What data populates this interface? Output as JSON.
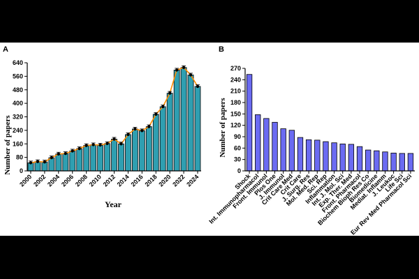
{
  "chart_data": [
    {
      "panel_label": "A",
      "type": "bar",
      "title": "",
      "xlabel": "Year",
      "ylabel": "Number of papers",
      "ylim": [
        0,
        640
      ],
      "yticks": [
        0,
        80,
        160,
        240,
        320,
        400,
        480,
        560,
        640
      ],
      "categories": [
        "2000",
        "2001",
        "2002",
        "2003",
        "2004",
        "2005",
        "2006",
        "2007",
        "2008",
        "2009",
        "2010",
        "2011",
        "2012",
        "2013",
        "2014",
        "2015",
        "2016",
        "2017",
        "2018",
        "2019",
        "2020",
        "2021",
        "2022",
        "2023",
        "2024"
      ],
      "xtick_labels": [
        "2000",
        "2002",
        "2004",
        "2006",
        "2008",
        "2010",
        "2012",
        "2014",
        "2016",
        "2018",
        "2020",
        "2022",
        "2024"
      ],
      "values": [
        48,
        55,
        53,
        78,
        100,
        103,
        118,
        132,
        150,
        155,
        153,
        162,
        188,
        160,
        215,
        248,
        238,
        262,
        335,
        380,
        460,
        597,
        612,
        568,
        500
      ],
      "overlay_line": true,
      "colors": {
        "bar": "#2f9fb1",
        "line": "#ff8c00",
        "marker": "#000000"
      }
    },
    {
      "panel_label": "B",
      "type": "bar",
      "title": "",
      "xlabel": "",
      "ylabel": "Number of papers",
      "ylim": [
        0,
        270
      ],
      "yticks": [
        0,
        30,
        60,
        90,
        120,
        150,
        180,
        210,
        240,
        270
      ],
      "categories": [
        "Shock",
        "Int. Immunopharmacol",
        "Front. Immunol",
        "Plos One",
        "J. Immunol",
        "Crit Care Med",
        "Crit Care",
        "J. Surg. Res",
        "Mol. Med. Rep",
        "Sci. Rep",
        "Inflammation",
        "Int. J. Mol. Sci",
        "Exp. Ther. Med",
        "Front. Pharmacol",
        "Biochem Bioph Res Co",
        "Biomedicine",
        "Mediat. Inflamm",
        "J. Leukoc",
        "Life Sci",
        "Eur Rev Med Pharmacol Sci"
      ],
      "values": [
        254,
        148,
        138,
        128,
        111,
        107,
        88,
        82,
        81,
        77,
        74,
        71,
        70,
        64,
        55,
        53,
        50,
        47,
        46,
        46
      ],
      "colors": {
        "bar": "#6b6bf2"
      }
    }
  ]
}
